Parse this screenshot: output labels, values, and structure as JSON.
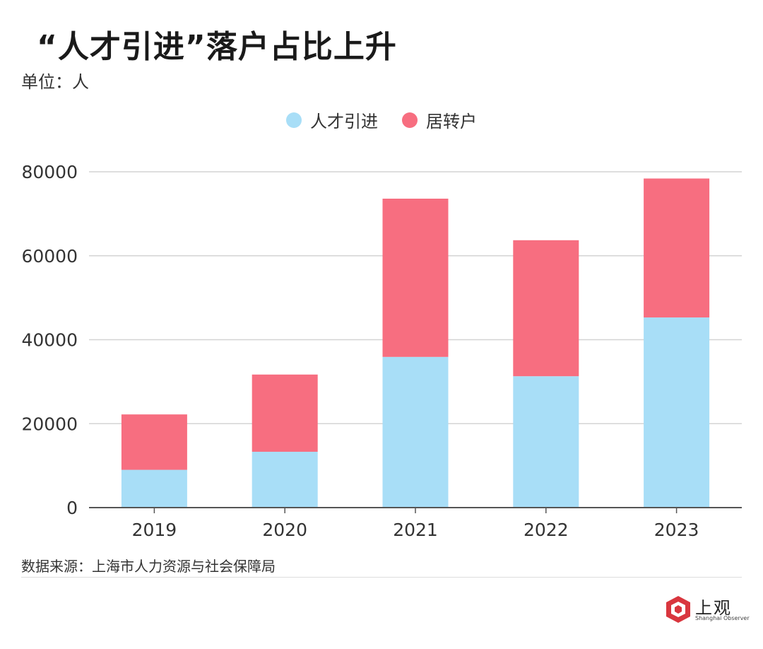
{
  "header": {
    "title": "“人才引进”落户占比上升",
    "unit": "单位：人"
  },
  "legend": [
    {
      "label": "人才引进",
      "color": "#a8def7"
    },
    {
      "label": "居转户",
      "color": "#f76e80"
    }
  ],
  "chart_data": {
    "type": "bar",
    "stacked": true,
    "categories": [
      "2019",
      "2020",
      "2021",
      "2022",
      "2023"
    ],
    "series": [
      {
        "name": "人才引进",
        "color": "#a8def7",
        "values": [
          9000,
          13300,
          35900,
          31300,
          45300
        ]
      },
      {
        "name": "居转户",
        "color": "#f76e80",
        "values": [
          13200,
          18400,
          37700,
          32400,
          33100
        ]
      }
    ],
    "ylim": [
      0,
      80000
    ],
    "yticks": [
      0,
      20000,
      40000,
      60000,
      80000
    ],
    "grid": true,
    "legend_position": "top-center"
  },
  "footer": {
    "source": "数据来源：上海市人力资源与社会保障局",
    "logo_text": "上观",
    "logo_sub": "Shanghai Observer"
  }
}
